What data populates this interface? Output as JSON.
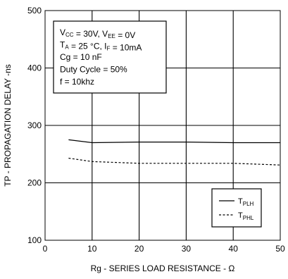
{
  "chart_data": {
    "type": "line",
    "xlabel": "Rg - SERIES LOAD RESISTANCE - Ω",
    "ylabel": "TP - PROPAGATION DELAY -ns",
    "xlim": [
      0,
      50
    ],
    "ylim": [
      100,
      500
    ],
    "xticks": [
      0,
      10,
      20,
      30,
      40,
      50
    ],
    "yticks": [
      100,
      200,
      300,
      400,
      500
    ],
    "grid": true,
    "legend_position": "bottom-right",
    "conditions": [
      {
        "parts": [
          {
            "t": "V"
          },
          {
            "t": "CC",
            "sub": true
          },
          {
            "t": " = 30V, V"
          },
          {
            "t": "EE",
            "sub": true
          },
          {
            "t": " = 0V"
          }
        ]
      },
      {
        "parts": [
          {
            "t": "T"
          },
          {
            "t": "A",
            "sub": true
          },
          {
            "t": " = 25 °C, I"
          },
          {
            "t": "F",
            "sub": true
          },
          {
            "t": " = 10mA"
          }
        ]
      },
      {
        "parts": [
          {
            "t": "Cg = 10 nF"
          }
        ]
      },
      {
        "parts": [
          {
            "t": "Duty Cycle = 50%"
          }
        ]
      },
      {
        "parts": [
          {
            "t": "f = 10khz"
          }
        ]
      }
    ],
    "series": [
      {
        "name_main": "T",
        "name_sub": "PLH",
        "style": "solid",
        "color": "#000000",
        "x": [
          5,
          10,
          20,
          30,
          40,
          50
        ],
        "y": [
          275,
          270,
          271,
          271,
          270,
          270
        ]
      },
      {
        "name_main": "T",
        "name_sub": "PHL",
        "style": "dashed",
        "color": "#000000",
        "x": [
          5,
          10,
          20,
          30,
          40,
          50
        ],
        "y": [
          243,
          237,
          234,
          234,
          234,
          231
        ]
      }
    ]
  }
}
